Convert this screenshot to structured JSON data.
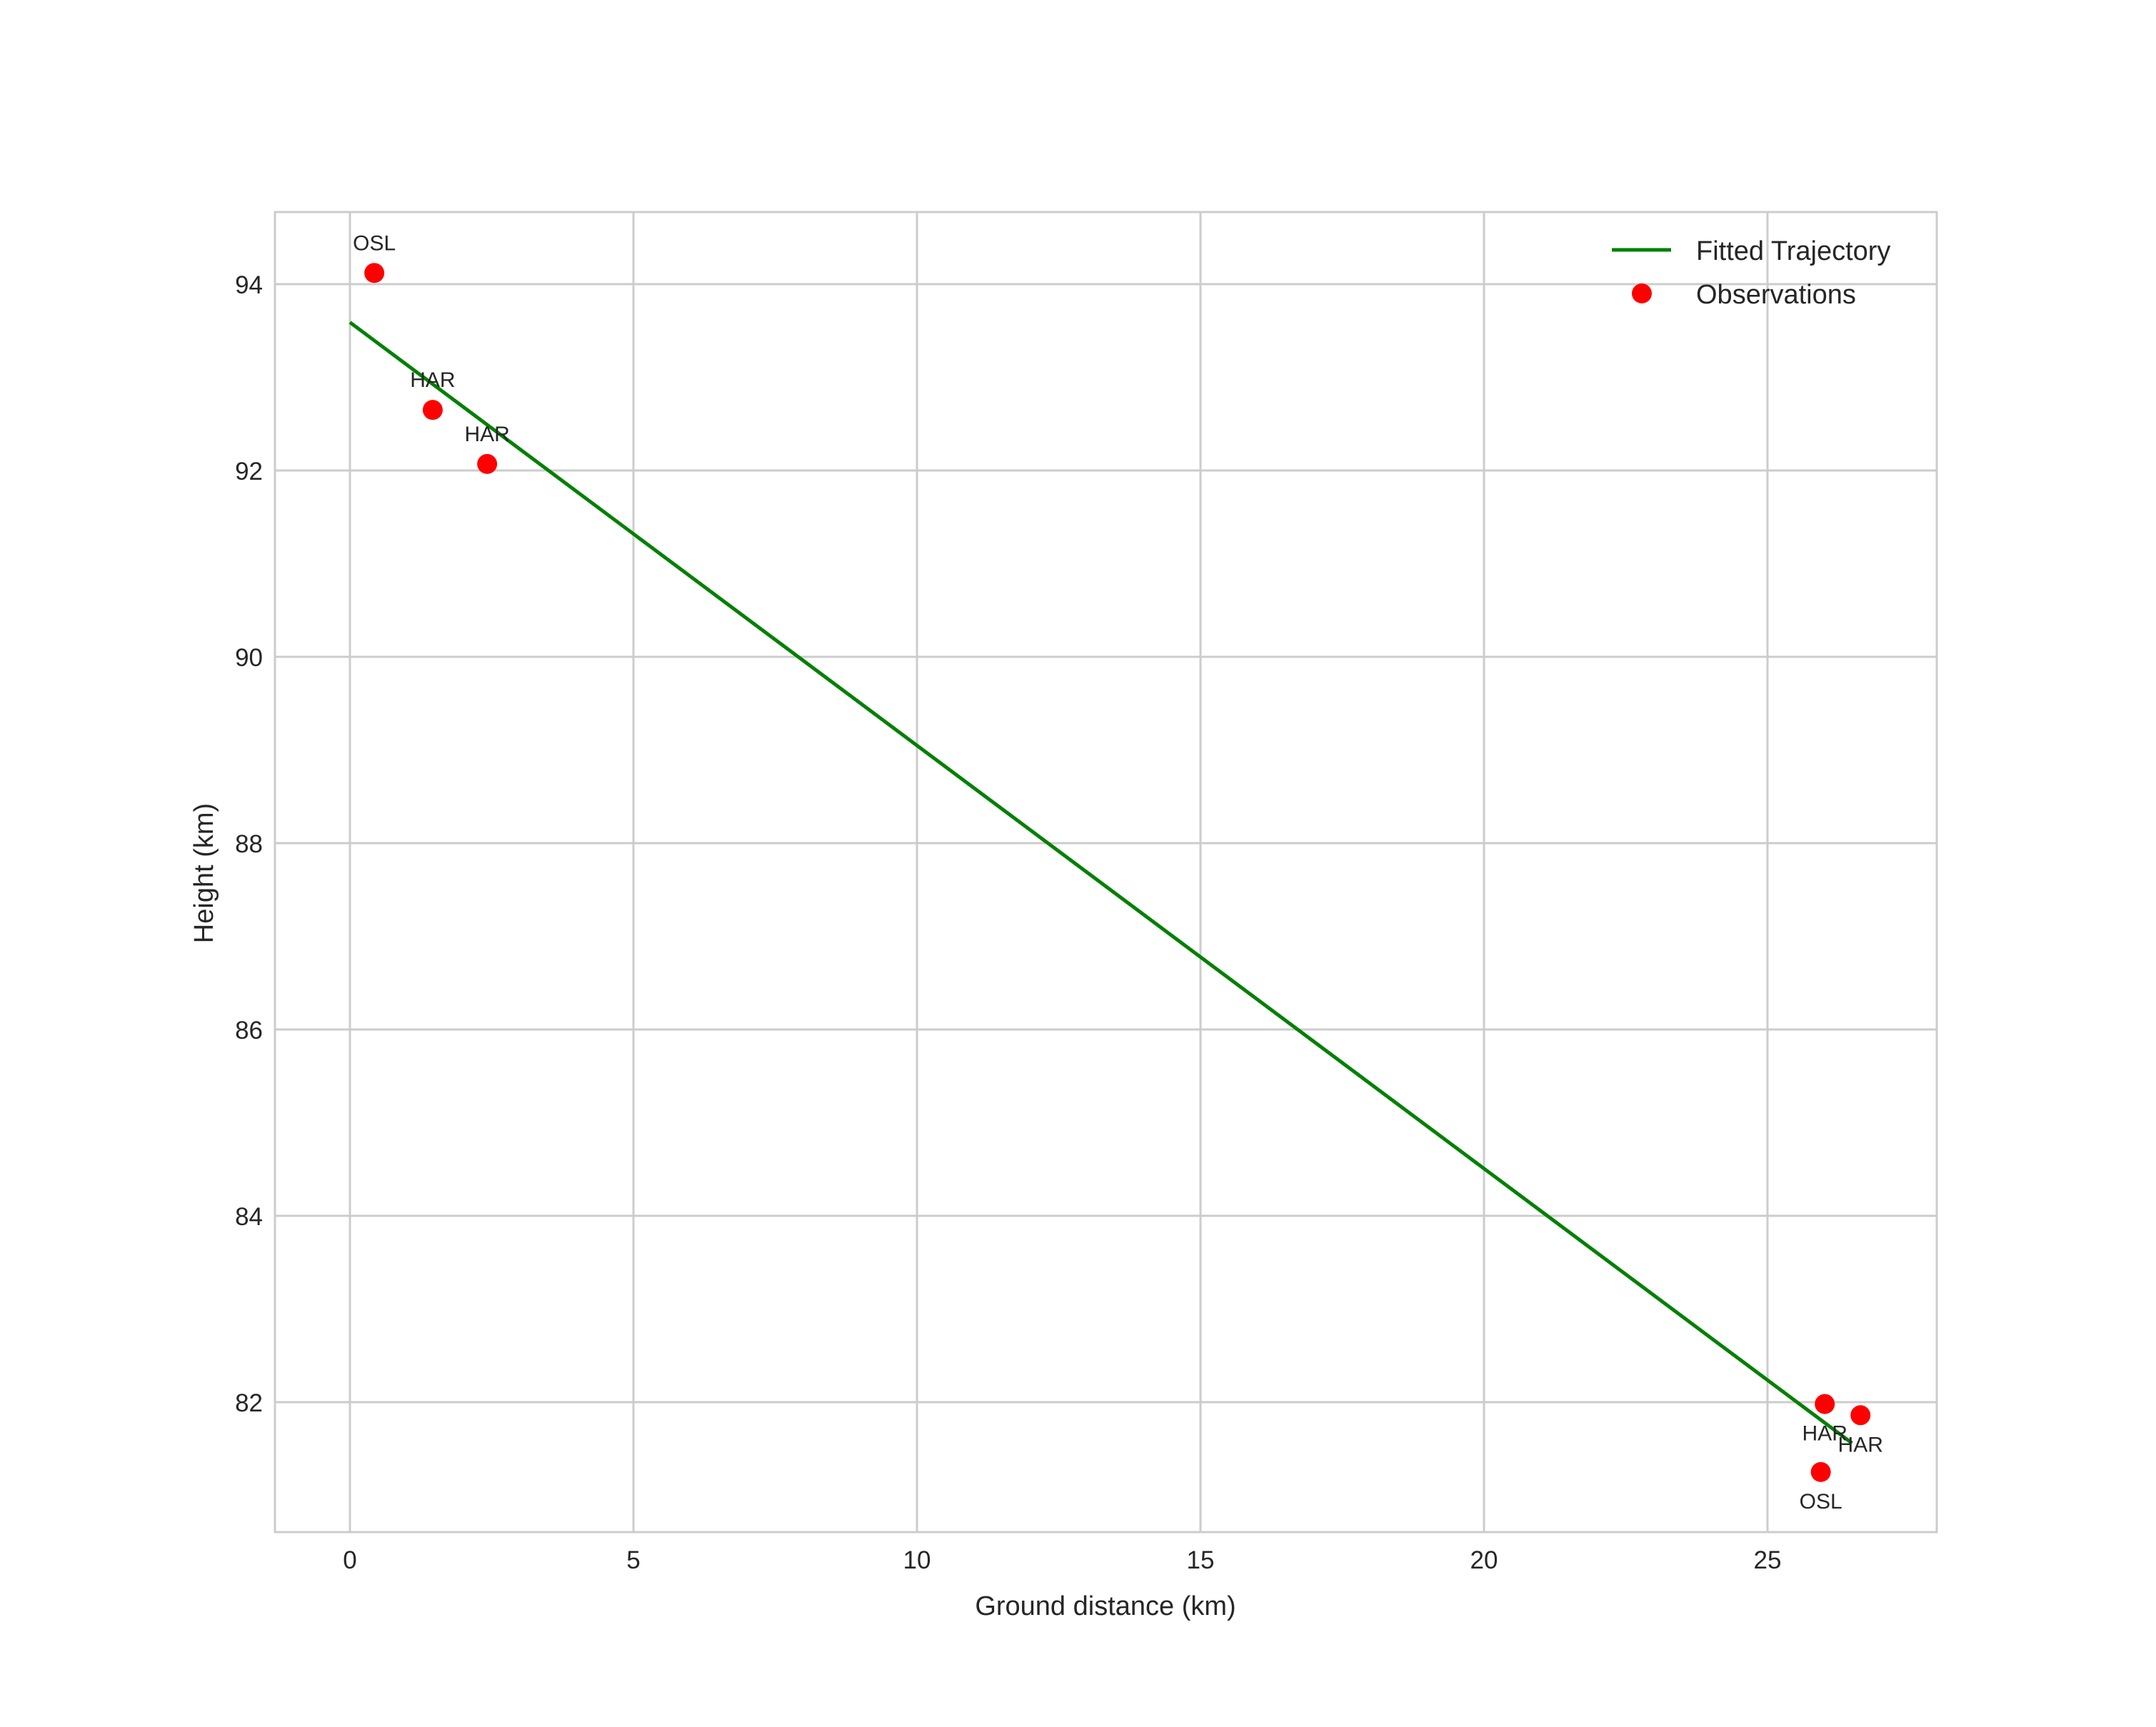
{
  "chart_data": {
    "type": "scatter",
    "title": "",
    "xlabel": "Ground distance (km)",
    "ylabel": "Height (km)",
    "xlim": [
      -1.3,
      28.0
    ],
    "ylim": [
      80.8,
      94.8
    ],
    "xticks": [
      0,
      5,
      10,
      15,
      20,
      25
    ],
    "yticks": [
      82,
      84,
      86,
      88,
      90,
      92,
      94
    ],
    "grid": true,
    "legend_position": "upper right",
    "series": [
      {
        "name": "Fitted Trajectory",
        "type": "line",
        "color": "#008000",
        "x": [
          0.0,
          26.49
        ],
        "y": [
          93.59,
          81.56
        ]
      },
      {
        "name": "Observations",
        "type": "scatter",
        "color": "#ff0000",
        "points": [
          {
            "x": 0.43,
            "y": 94.12,
            "label": "OSL",
            "label_pos": "above"
          },
          {
            "x": 1.46,
            "y": 92.65,
            "label": "HAR",
            "label_pos": "above"
          },
          {
            "x": 2.42,
            "y": 92.07,
            "label": "HAR",
            "label_pos": "above"
          },
          {
            "x": 26.01,
            "y": 81.98,
            "label": "HAR",
            "label_pos": "below"
          },
          {
            "x": 26.64,
            "y": 81.86,
            "label": "HAR",
            "label_pos": "below"
          },
          {
            "x": 25.94,
            "y": 81.25,
            "label": "OSL",
            "label_pos": "below"
          }
        ]
      }
    ]
  },
  "colors": {
    "grid": "#cccccc",
    "frame": "#cccccc",
    "text": "#262626",
    "line": "#008000",
    "marker": "#ff0000"
  }
}
